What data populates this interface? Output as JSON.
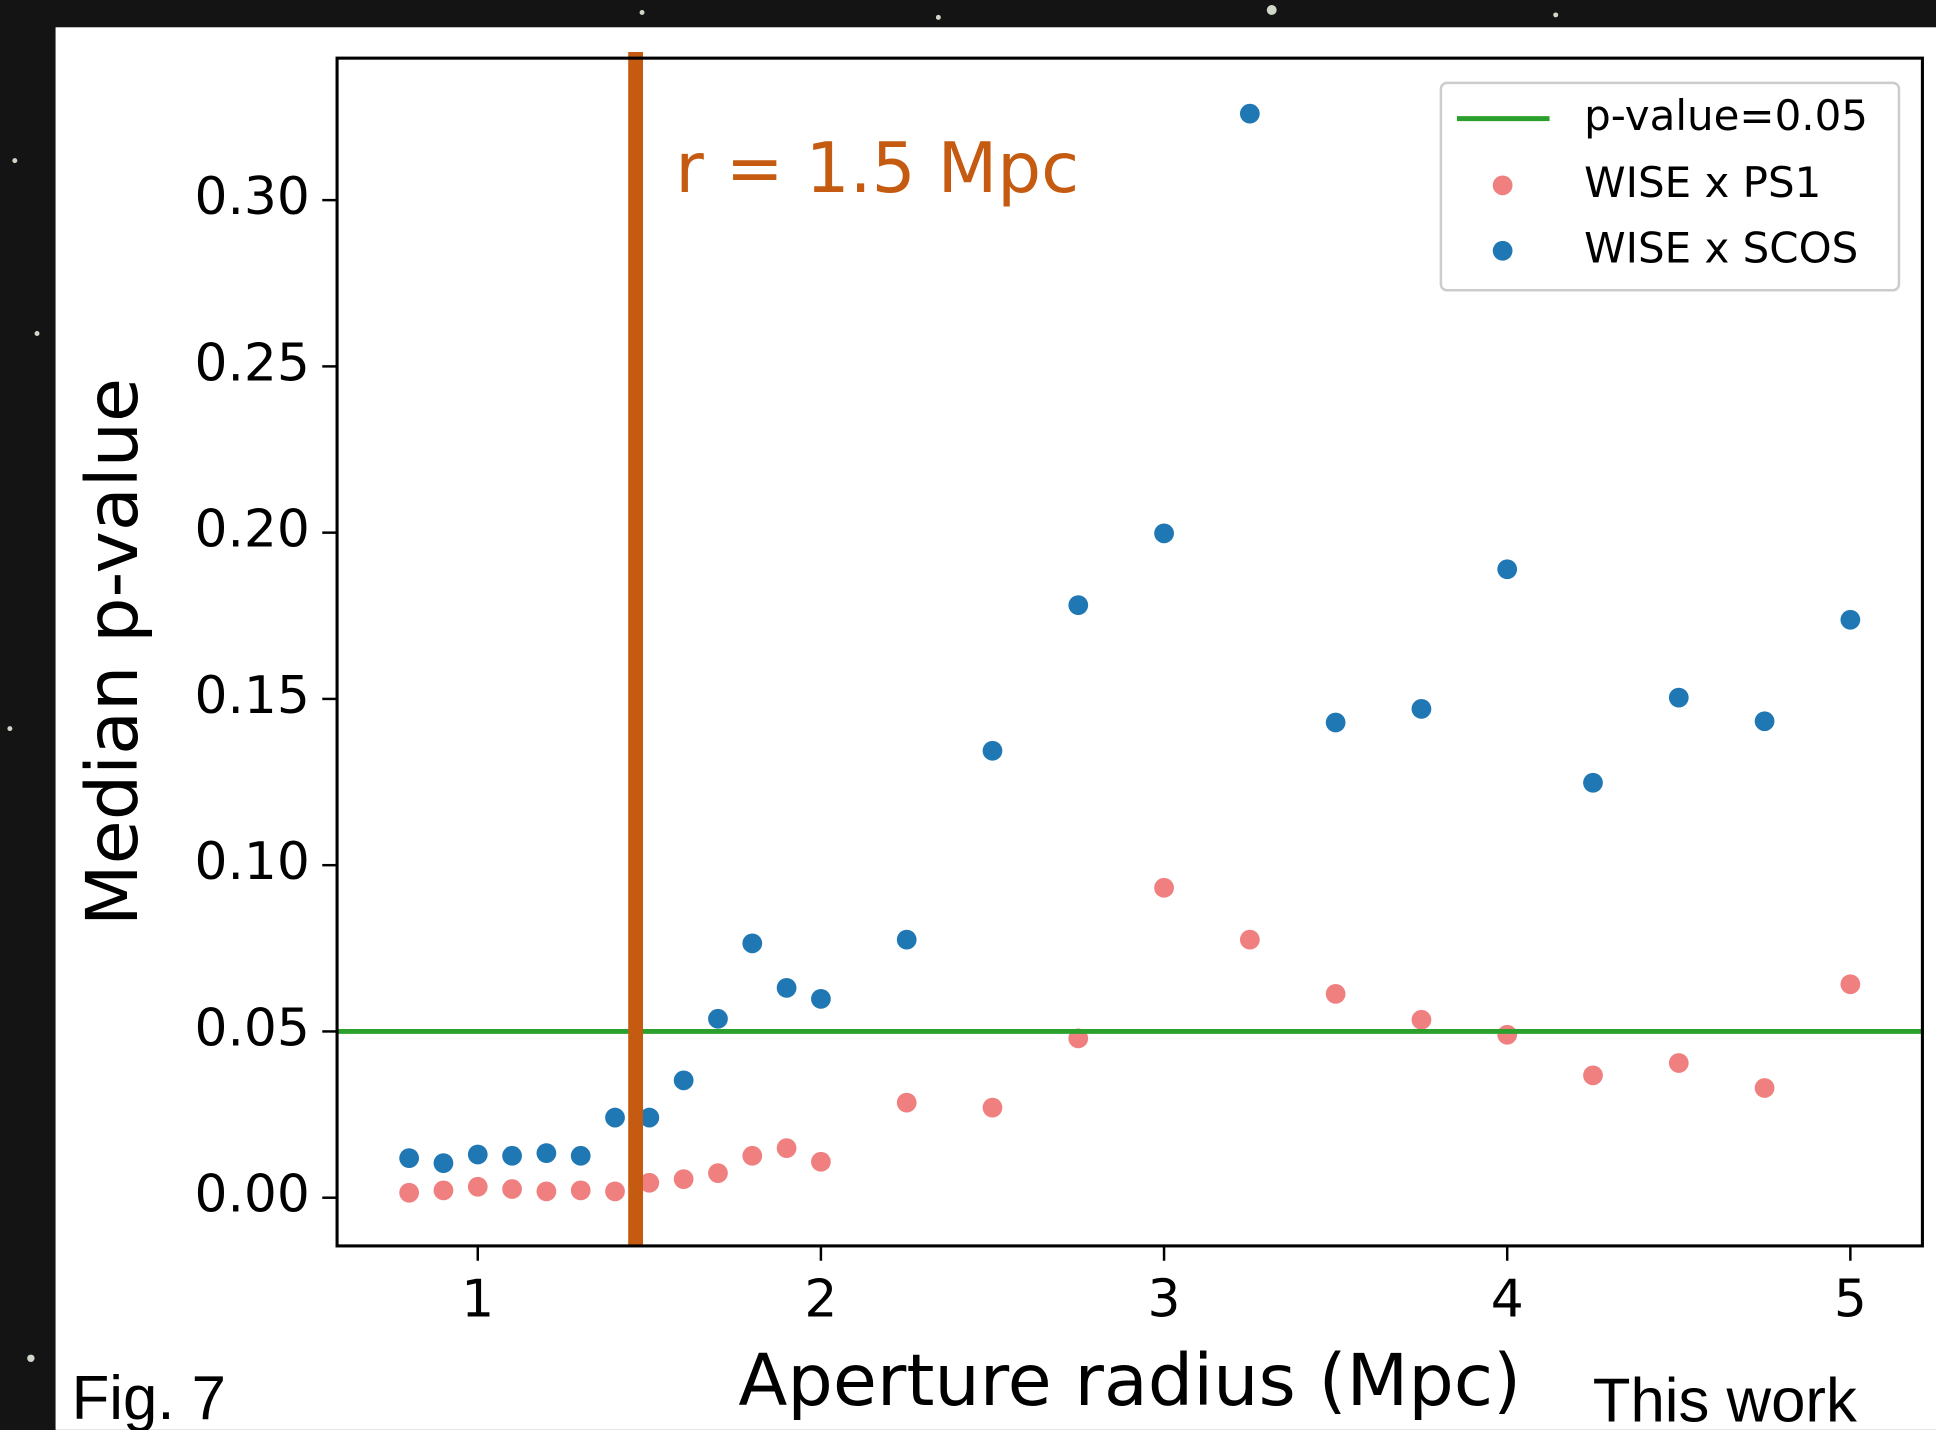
{
  "chart_data": {
    "type": "scatter",
    "xlabel": "Aperture radius (Mpc)",
    "ylabel": "Median p-value",
    "x": [
      0.8,
      0.9,
      1.0,
      1.1,
      1.2,
      1.3,
      1.4,
      1.5,
      1.6,
      1.7,
      1.8,
      1.9,
      2.0,
      2.25,
      2.5,
      2.75,
      3.0,
      3.25,
      3.5,
      3.75,
      4.0,
      4.25,
      4.5,
      4.75,
      5.0
    ],
    "series": [
      {
        "name": "WISE x PS1",
        "color": "#f08080",
        "values": [
          0.0015,
          0.0022,
          0.0033,
          0.0026,
          0.0019,
          0.0022,
          0.0019,
          0.0045,
          0.0056,
          0.0074,
          0.0126,
          0.0149,
          0.0108,
          0.0286,
          0.0271,
          0.0479,
          0.0932,
          0.0776,
          0.0613,
          0.0535,
          0.049,
          0.0368,
          0.0405,
          0.033,
          0.0642
        ]
      },
      {
        "name": "WISE x SCOS",
        "color": "#1f77b4",
        "values": [
          0.0119,
          0.0104,
          0.013,
          0.0126,
          0.0134,
          0.0126,
          0.0241,
          0.0241,
          0.0353,
          0.0538,
          0.0765,
          0.0631,
          0.0598,
          0.0776,
          0.1344,
          0.1782,
          0.1998,
          0.326,
          0.1429,
          0.147,
          0.189,
          0.1248,
          0.1504,
          0.1433,
          0.1738
        ]
      }
    ],
    "hline": {
      "name": "p-value=0.05",
      "value": 0.05,
      "color": "#2ca02c"
    },
    "vline": {
      "value": 1.46,
      "color": "#c55a11",
      "label": "r = 1.5 Mpc"
    },
    "xlim": [
      0.59,
      5.21
    ],
    "xticks": [
      1,
      2,
      3,
      4,
      5
    ],
    "ylim": [
      -0.0145,
      0.3427
    ],
    "yticks": [
      {
        "value": 0,
        "label": "0.00"
      },
      0.05,
      {
        "value": 0.1,
        "label": "0.10"
      },
      0.15,
      {
        "value": 0.2,
        "label": "0.20"
      },
      0.25,
      {
        "value": 0.3,
        "label": "0.30"
      }
    ],
    "legend": "upper right"
  },
  "caption": {
    "figure": "Fig. 7",
    "credit": "This work"
  }
}
